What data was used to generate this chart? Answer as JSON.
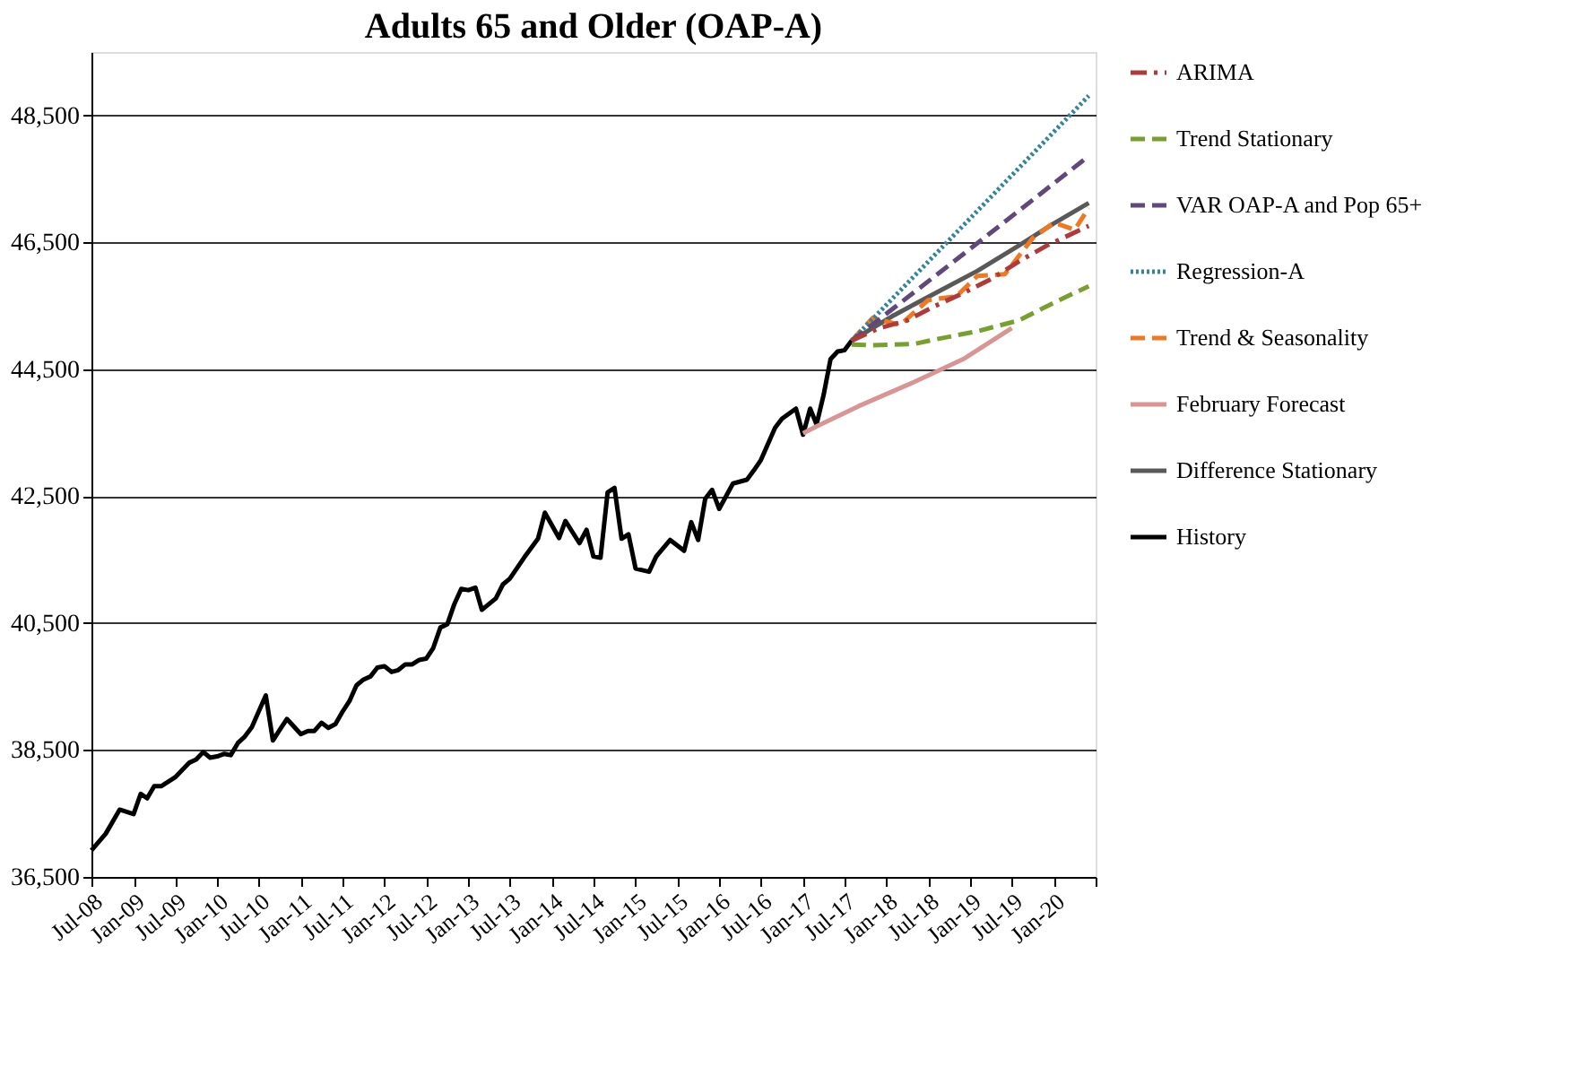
{
  "chart_data": {
    "type": "line",
    "title": "Adults 65 and Older (OAP-A)",
    "xlim": [
      "2008-07",
      "2020-07"
    ],
    "xticks": [
      {
        "value": "2008-07",
        "label": "Jul-08"
      },
      {
        "value": "2009-01",
        "label": "Jan-09"
      },
      {
        "value": "2009-07",
        "label": "Jul-09"
      },
      {
        "value": "2010-01",
        "label": "Jan-10"
      },
      {
        "value": "2010-07",
        "label": "Jul-10"
      },
      {
        "value": "2011-01",
        "label": "Jan-11"
      },
      {
        "value": "2011-07",
        "label": "Jul-11"
      },
      {
        "value": "2012-01",
        "label": "Jan-12"
      },
      {
        "value": "2012-07",
        "label": "Jul-12"
      },
      {
        "value": "2013-01",
        "label": "Jan-13"
      },
      {
        "value": "2013-07",
        "label": "Jul-13"
      },
      {
        "value": "2014-01",
        "label": "Jan-14"
      },
      {
        "value": "2014-07",
        "label": "Jul-14"
      },
      {
        "value": "2015-01",
        "label": "Jan-15"
      },
      {
        "value": "2015-07",
        "label": "Jul-15"
      },
      {
        "value": "2016-01",
        "label": "Jan-16"
      },
      {
        "value": "2016-07",
        "label": "Jul-16"
      },
      {
        "value": "2017-01",
        "label": "Jan-17"
      },
      {
        "value": "2017-07",
        "label": "Jul-17"
      },
      {
        "value": "2018-01",
        "label": "Jan-18"
      },
      {
        "value": "2018-07",
        "label": "Jul-18"
      },
      {
        "value": "2019-01",
        "label": "Jan-19"
      },
      {
        "value": "2019-07",
        "label": "Jul-19"
      },
      {
        "value": "2020-01",
        "label": "Jan-20"
      },
      {
        "value": "2020-07",
        "label": null
      }
    ],
    "ylim": [
      36500,
      49500
    ],
    "yticks": [
      {
        "value": 36500,
        "label": "36,500"
      },
      {
        "value": 38500,
        "label": "38,500"
      },
      {
        "value": 40500,
        "label": "40,500"
      },
      {
        "value": 42500,
        "label": "42,500"
      },
      {
        "value": 44500,
        "label": "44,500"
      },
      {
        "value": 46500,
        "label": "46,500"
      },
      {
        "value": 48500,
        "label": "48,500"
      }
    ],
    "grid": "y",
    "legend": "right",
    "series": [
      {
        "name": "ARIMA",
        "color": "#b03a3a",
        "line_style": "dashdot",
        "x": [
          "2017-08",
          "2017-12",
          "2018-04",
          "2018-08",
          "2018-12",
          "2019-04",
          "2019-08",
          "2019-12",
          "2020-06"
        ],
        "values": [
          44950,
          45150,
          45270,
          45500,
          45700,
          45920,
          46200,
          46450,
          46760
        ]
      },
      {
        "name": "Trend Stationary",
        "color": "#77a02e",
        "line_style": "dashed",
        "x": [
          "2017-08",
          "2017-11",
          "2018-05",
          "2018-08",
          "2019-02",
          "2019-08",
          "2020-01",
          "2020-06"
        ],
        "values": [
          44890,
          44880,
          44900,
          44970,
          45100,
          45270,
          45550,
          45810
        ]
      },
      {
        "name": "VAR OAP-A and Pop 65+",
        "color": "#60497a",
        "line_style": "dashed",
        "x": [
          "2017-08",
          "2019-01",
          "2020-06"
        ],
        "values": [
          44950,
          46400,
          47860
        ]
      },
      {
        "name": "Regression-A",
        "color": "#31849b",
        "line_style": "dotted",
        "x": [
          "2017-08",
          "2019-01",
          "2020-06"
        ],
        "values": [
          44950,
          46880,
          48810
        ]
      },
      {
        "name": "Trend & Seasonality",
        "color": "#f07820",
        "line_style": "dashed",
        "x": [
          "2017-08",
          "2017-11",
          "2018-03",
          "2018-07",
          "2018-11",
          "2019-02",
          "2019-06",
          "2019-10",
          "2020-01",
          "2020-04",
          "2020-06"
        ],
        "values": [
          44950,
          45310,
          45200,
          45590,
          45650,
          45970,
          46000,
          46570,
          46810,
          46700,
          47040
        ]
      },
      {
        "name": "February Forecast",
        "color": "#d99594",
        "line_style": "solid",
        "x": [
          "2017-01",
          "2017-03",
          "2017-09",
          "2018-05",
          "2018-12",
          "2019-07"
        ],
        "values": [
          43490,
          43600,
          43920,
          44300,
          44660,
          45150
        ]
      },
      {
        "name": "Difference Stationary",
        "color": "#595959",
        "line_style": "solid",
        "x": [
          "2017-08",
          "2018-02",
          "2018-08",
          "2019-02",
          "2019-08",
          "2020-01",
          "2020-06"
        ],
        "values": [
          44950,
          45350,
          45700,
          46050,
          46450,
          46800,
          47120
        ]
      },
      {
        "name": "History",
        "color": "#000000",
        "line_style": "solid",
        "x": [
          "2008-07",
          "2008-09",
          "2008-11",
          "2009-01",
          "2009-02",
          "2009-03",
          "2009-04",
          "2009-05",
          "2009-07",
          "2009-09",
          "2009-10",
          "2009-11",
          "2009-12",
          "2010-01",
          "2010-02",
          "2010-03",
          "2010-04",
          "2010-05",
          "2010-06",
          "2010-08",
          "2010-09",
          "2010-10",
          "2010-11",
          "2011-01",
          "2011-02",
          "2011-03",
          "2011-04",
          "2011-05",
          "2011-06",
          "2011-07",
          "2011-08",
          "2011-09",
          "2011-10",
          "2011-11",
          "2011-12",
          "2012-01",
          "2012-02",
          "2012-03",
          "2012-04",
          "2012-05",
          "2012-06",
          "2012-07",
          "2012-08",
          "2012-09",
          "2012-10",
          "2012-11",
          "2012-12",
          "2013-01",
          "2013-02",
          "2013-03",
          "2013-05",
          "2013-06",
          "2013-07",
          "2013-09",
          "2013-11",
          "2013-12",
          "2014-02",
          "2014-03",
          "2014-05",
          "2014-06",
          "2014-07",
          "2014-08",
          "2014-09",
          "2014-10",
          "2014-11",
          "2014-12",
          "2015-01",
          "2015-03",
          "2015-04",
          "2015-06",
          "2015-08",
          "2015-09",
          "2015-10",
          "2015-11",
          "2015-12",
          "2016-01",
          "2016-03",
          "2016-05",
          "2016-06",
          "2016-07",
          "2016-09",
          "2016-10",
          "2016-12",
          "2017-01",
          "2017-02",
          "2017-03",
          "2017-04",
          "2017-05",
          "2017-06",
          "2017-07",
          "2017-08"
        ],
        "values": [
          36920,
          37180,
          37560,
          37490,
          37810,
          37740,
          37930,
          37930,
          38070,
          38300,
          38350,
          38470,
          38380,
          38400,
          38440,
          38420,
          38610,
          38710,
          38860,
          39360,
          38650,
          38820,
          38990,
          38750,
          38800,
          38800,
          38930,
          38850,
          38910,
          39100,
          39270,
          39520,
          39610,
          39660,
          39800,
          39820,
          39730,
          39760,
          39850,
          39850,
          39920,
          39940,
          40110,
          40430,
          40480,
          40800,
          41040,
          41020,
          41060,
          40710,
          40890,
          41110,
          41200,
          41530,
          41830,
          42240,
          41840,
          42110,
          41760,
          41970,
          41550,
          41530,
          42560,
          42630,
          41830,
          41900,
          41360,
          41310,
          41550,
          41810,
          41640,
          42090,
          41810,
          42460,
          42600,
          42300,
          42700,
          42760,
          42910,
          43070,
          43580,
          43720,
          43880,
          43470,
          43880,
          43630,
          44100,
          44660,
          44780,
          44800,
          44950
        ]
      }
    ]
  }
}
